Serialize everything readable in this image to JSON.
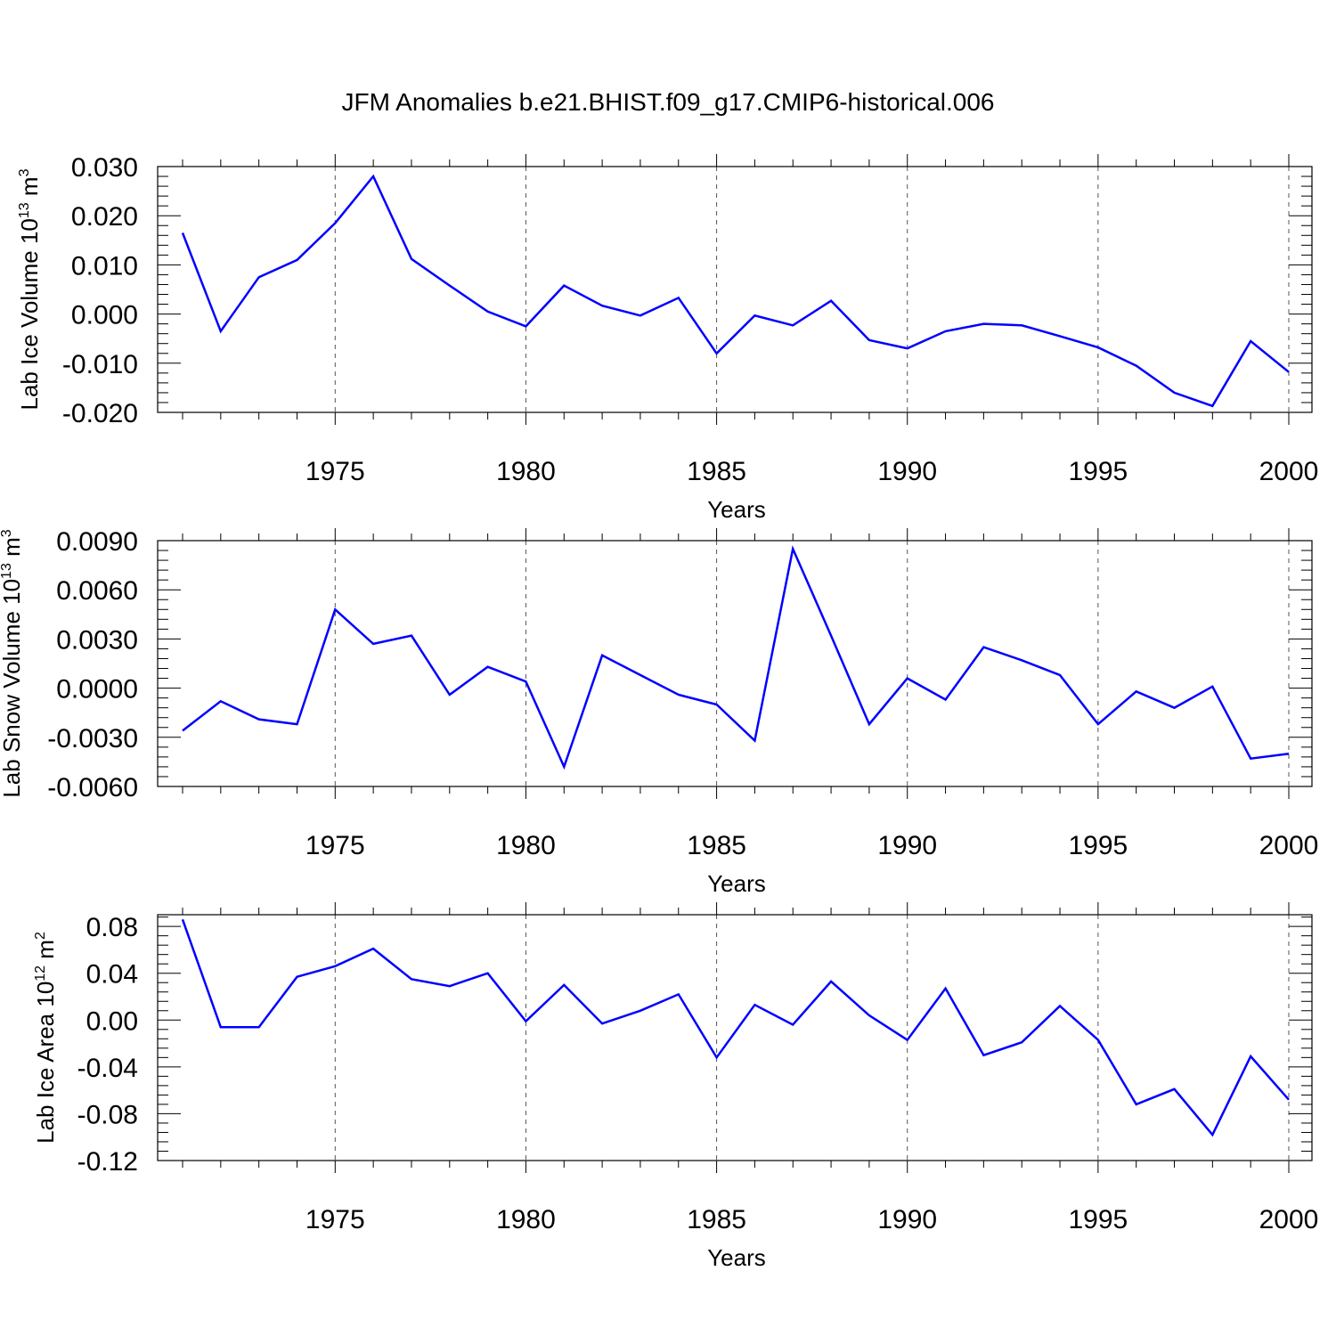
{
  "figure": {
    "title": "JFM Anomalies b.e21.BHIST.f09_g17.CMIP6-historical.006"
  },
  "chart_data": [
    {
      "type": "line",
      "title": "",
      "xlabel": "Years",
      "ylabel": {
        "text": "Lab Ice Volume 10",
        "sup": "13",
        "unit": " m",
        "unit_sup": "3"
      },
      "xlim": [
        1971,
        2000
      ],
      "ylim": [
        -0.02,
        0.03
      ],
      "yticks": [
        -0.02,
        -0.01,
        0.0,
        0.01,
        0.02,
        0.03
      ],
      "ytick_labels": [
        "-0.020",
        "-0.010",
        "0.000",
        "0.010",
        "0.020",
        "0.030"
      ],
      "xticks": [
        1975,
        1980,
        1985,
        1990,
        1995,
        2000
      ],
      "xtick_labels": [
        "1975",
        "1980",
        "1985",
        "1990",
        "1995",
        "2000"
      ],
      "grid": "vertical dashed at labeled years",
      "line_color": "#0000ff",
      "x": [
        1971,
        1972,
        1973,
        1974,
        1975,
        1976,
        1977,
        1978,
        1979,
        1980,
        1981,
        1982,
        1983,
        1984,
        1985,
        1986,
        1987,
        1988,
        1989,
        1990,
        1991,
        1992,
        1993,
        1994,
        1995,
        1996,
        1997,
        1998,
        1999,
        2000
      ],
      "values": [
        0.0165,
        -0.0035,
        0.0075,
        0.011,
        0.0185,
        0.028,
        0.0112,
        0.0058,
        0.0005,
        -0.0025,
        0.0058,
        0.0017,
        -0.0003,
        0.0033,
        -0.008,
        -0.0003,
        -0.0023,
        0.0027,
        -0.0053,
        -0.007,
        -0.0035,
        -0.002,
        -0.0023,
        -0.0045,
        -0.0068,
        -0.0105,
        -0.016,
        -0.0187,
        -0.0055,
        -0.0118
      ]
    },
    {
      "type": "line",
      "title": "",
      "xlabel": "Years",
      "ylabel": {
        "text": "Lab Snow Volume 10",
        "sup": "13",
        "unit": " m",
        "unit_sup": "3"
      },
      "xlim": [
        1971,
        2000
      ],
      "ylim": [
        -0.006,
        0.009
      ],
      "yticks": [
        -0.006,
        -0.003,
        0.0,
        0.003,
        0.006,
        0.009
      ],
      "ytick_labels": [
        "-0.0060",
        "-0.0030",
        "0.0000",
        "0.0030",
        "0.0060",
        "0.0090"
      ],
      "xticks": [
        1975,
        1980,
        1985,
        1990,
        1995,
        2000
      ],
      "xtick_labels": [
        "1975",
        "1980",
        "1985",
        "1990",
        "1995",
        "2000"
      ],
      "grid": "vertical dashed at labeled years",
      "line_color": "#0000ff",
      "x": [
        1971,
        1972,
        1973,
        1974,
        1975,
        1976,
        1977,
        1978,
        1979,
        1980,
        1981,
        1982,
        1983,
        1984,
        1985,
        1986,
        1987,
        1988,
        1989,
        1990,
        1991,
        1992,
        1993,
        1994,
        1995,
        1996,
        1997,
        1998,
        1999,
        2000
      ],
      "values": [
        -0.0026,
        -0.0008,
        -0.0019,
        -0.0022,
        0.0048,
        0.0027,
        0.0032,
        -0.0004,
        0.0013,
        0.0004,
        -0.0048,
        0.002,
        0.0008,
        -0.0004,
        -0.001,
        -0.0032,
        0.0085,
        0.0032,
        -0.0022,
        0.0006,
        -0.0007,
        0.0025,
        0.0017,
        0.0008,
        -0.0022,
        -0.0002,
        -0.0012,
        0.0001,
        -0.0043,
        -0.004
      ]
    },
    {
      "type": "line",
      "title": "",
      "xlabel": "Years",
      "ylabel": {
        "text": "Lab Ice Area 10",
        "sup": "12",
        "unit": " m",
        "unit_sup": "2"
      },
      "xlim": [
        1971,
        2000
      ],
      "ylim": [
        -0.12,
        0.09
      ],
      "yticks": [
        -0.12,
        -0.08,
        -0.04,
        0.0,
        0.04,
        0.08
      ],
      "ytick_labels": [
        "-0.12",
        "-0.08",
        "-0.04",
        "0.00",
        "0.04",
        "0.08"
      ],
      "xticks": [
        1975,
        1980,
        1985,
        1990,
        1995,
        2000
      ],
      "xtick_labels": [
        "1975",
        "1980",
        "1985",
        "1990",
        "1995",
        "2000"
      ],
      "grid": "vertical dashed at labeled years",
      "line_color": "#0000ff",
      "x": [
        1971,
        1972,
        1973,
        1974,
        1975,
        1976,
        1977,
        1978,
        1979,
        1980,
        1981,
        1982,
        1983,
        1984,
        1985,
        1986,
        1987,
        1988,
        1989,
        1990,
        1991,
        1992,
        1993,
        1994,
        1995,
        1996,
        1997,
        1998,
        1999,
        2000
      ],
      "values": [
        0.086,
        -0.006,
        -0.006,
        0.037,
        0.046,
        0.061,
        0.035,
        0.029,
        0.04,
        -0.001,
        0.03,
        -0.003,
        0.008,
        0.022,
        -0.032,
        0.013,
        -0.004,
        0.033,
        0.004,
        -0.017,
        0.027,
        -0.03,
        -0.019,
        0.012,
        -0.017,
        -0.072,
        -0.059,
        -0.098,
        -0.031,
        -0.068
      ]
    }
  ]
}
